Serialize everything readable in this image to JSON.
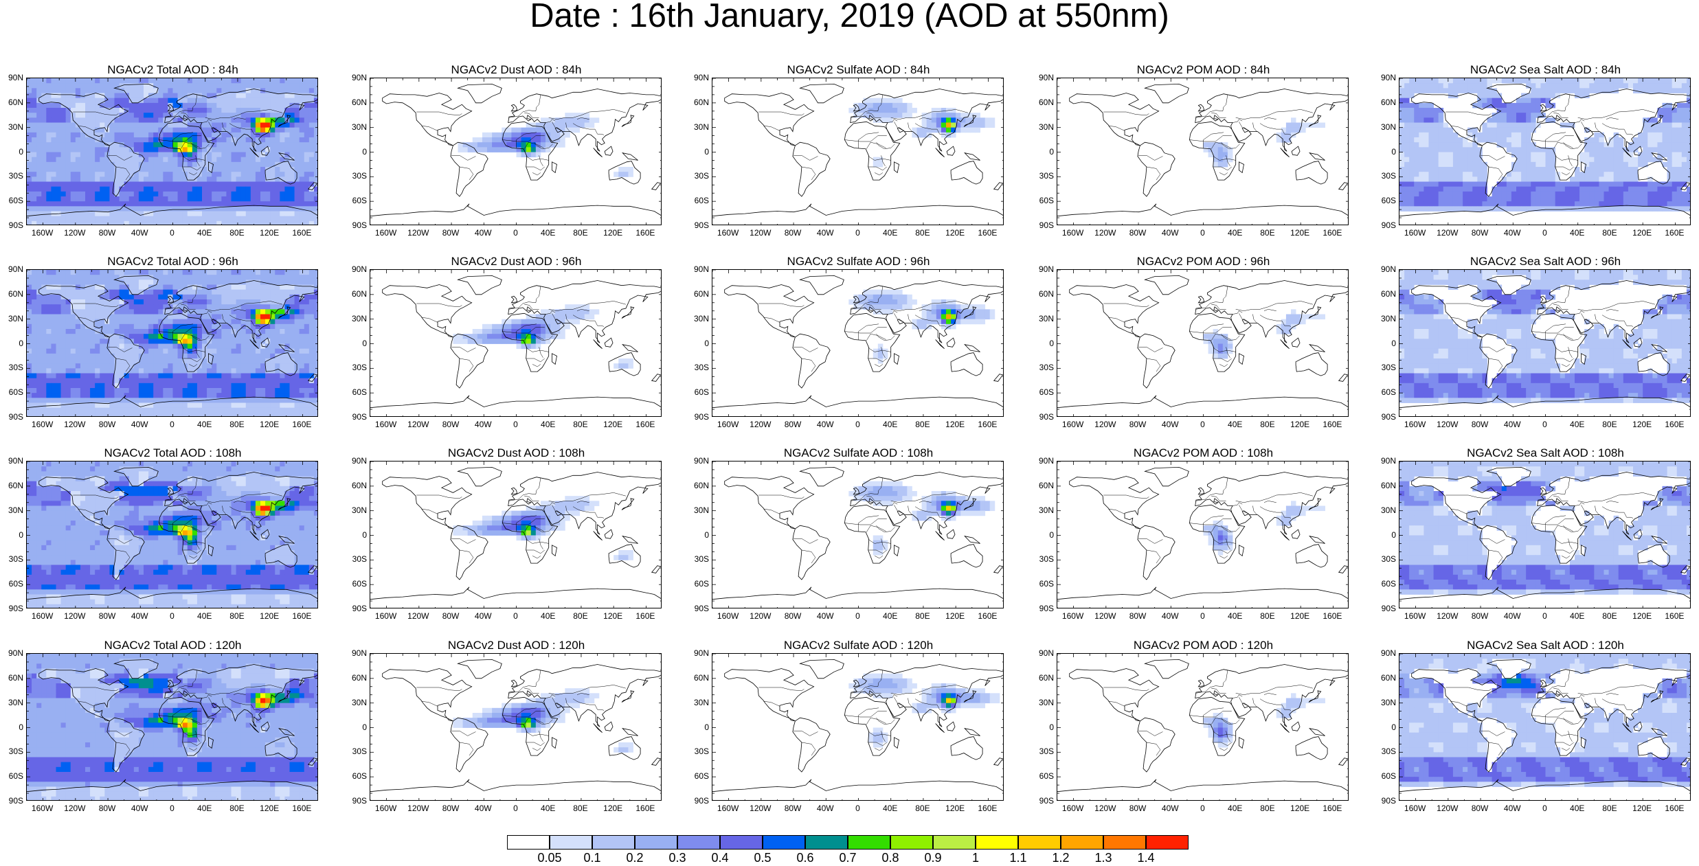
{
  "title": "Date : 16th January, 2019 (AOD at 550nm)",
  "map_axes": {
    "lat_ticks": [
      "90N",
      "60N",
      "30N",
      "0",
      "30S",
      "60S",
      "90S"
    ],
    "lon_ticks": [
      "160W",
      "120W",
      "80W",
      "40W",
      "0",
      "40E",
      "80E",
      "120E",
      "160E"
    ],
    "lat_values": [
      90,
      60,
      30,
      0,
      -30,
      -60,
      -90
    ],
    "lon_values": [
      -160,
      -120,
      -80,
      -40,
      0,
      40,
      80,
      120,
      160
    ],
    "projection": "cylindrical-equidistant",
    "lon_range": [
      -180,
      180
    ],
    "lat_range": [
      -90,
      90
    ]
  },
  "panels": [
    {
      "title": "NGACv2 Total AOD : 84h",
      "species": "total",
      "forecast_hour": 84
    },
    {
      "title": "NGACv2 Dust AOD : 84h",
      "species": "dust",
      "forecast_hour": 84
    },
    {
      "title": "NGACv2 Sulfate AOD : 84h",
      "species": "sulfate",
      "forecast_hour": 84
    },
    {
      "title": "NGACv2 POM AOD : 84h",
      "species": "pom",
      "forecast_hour": 84
    },
    {
      "title": "NGACv2 Sea Salt AOD : 84h",
      "species": "seasalt",
      "forecast_hour": 84
    },
    {
      "title": "NGACv2 Total AOD : 96h",
      "species": "total",
      "forecast_hour": 96
    },
    {
      "title": "NGACv2 Dust AOD : 96h",
      "species": "dust",
      "forecast_hour": 96
    },
    {
      "title": "NGACv2 Sulfate AOD : 96h",
      "species": "sulfate",
      "forecast_hour": 96
    },
    {
      "title": "NGACv2 POM AOD : 96h",
      "species": "pom",
      "forecast_hour": 96
    },
    {
      "title": "NGACv2 Sea Salt AOD : 96h",
      "species": "seasalt",
      "forecast_hour": 96
    },
    {
      "title": "NGACv2 Total AOD : 108h",
      "species": "total",
      "forecast_hour": 108
    },
    {
      "title": "NGACv2 Dust AOD : 108h",
      "species": "dust",
      "forecast_hour": 108
    },
    {
      "title": "NGACv2 Sulfate AOD : 108h",
      "species": "sulfate",
      "forecast_hour": 108
    },
    {
      "title": "NGACv2 POM AOD : 108h",
      "species": "pom",
      "forecast_hour": 108
    },
    {
      "title": "NGACv2 Sea Salt AOD : 108h",
      "species": "seasalt",
      "forecast_hour": 108
    },
    {
      "title": "NGACv2 Total AOD : 120h",
      "species": "total",
      "forecast_hour": 120
    },
    {
      "title": "NGACv2 Dust AOD : 120h",
      "species": "dust",
      "forecast_hour": 120
    },
    {
      "title": "NGACv2 Sulfate AOD : 120h",
      "species": "sulfate",
      "forecast_hour": 120
    },
    {
      "title": "NGACv2 POM AOD : 120h",
      "species": "pom",
      "forecast_hour": 120
    },
    {
      "title": "NGACv2 Sea Salt  AOD : 120h",
      "species": "seasalt",
      "forecast_hour": 120
    }
  ],
  "colorbar": {
    "labels": [
      "0.05",
      "0.1",
      "0.2",
      "0.3",
      "0.4",
      "0.5",
      "0.6",
      "0.7",
      "0.8",
      "0.9",
      "1",
      "1.1",
      "1.2",
      "1.3",
      "1.4"
    ],
    "colors": [
      "#ffffff",
      "#d4e0fb",
      "#b3c5f6",
      "#99b0f2",
      "#7f8cee",
      "#6666e6",
      "#0061f2",
      "#008f8f",
      "#33dd00",
      "#8ff000",
      "#bbee44",
      "#ffff00",
      "#ffcc00",
      "#ffa500",
      "#ff7700",
      "#ff2200"
    ]
  }
}
